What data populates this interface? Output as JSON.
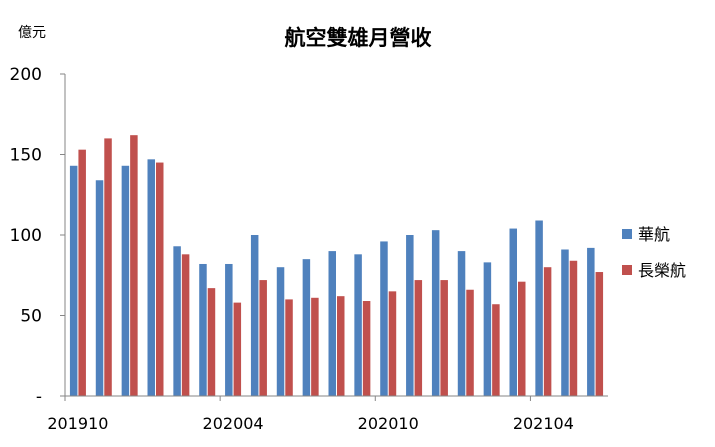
{
  "chart_data": {
    "type": "bar",
    "title": "航空雙雄月營收",
    "unit_label": "億元",
    "ylim": [
      0,
      200
    ],
    "y_ticks": [
      "-",
      "50",
      "100",
      "150",
      "200"
    ],
    "x_tick_labels": [
      "201910",
      "202004",
      "202010",
      "202104"
    ],
    "categories": [
      "201910",
      "201911",
      "201912",
      "202001",
      "202002",
      "202003",
      "202004",
      "202005",
      "202006",
      "202007",
      "202008",
      "202009",
      "202010",
      "202011",
      "202012",
      "202101",
      "202102",
      "202103",
      "202104",
      "202105",
      "202106"
    ],
    "series": [
      {
        "name": "華航",
        "color": "#4F81BD",
        "values": [
          143,
          134,
          143,
          147,
          93,
          82,
          82,
          100,
          80,
          85,
          90,
          88,
          96,
          100,
          103,
          90,
          83,
          104,
          109,
          91,
          92
        ]
      },
      {
        "name": "長榮航",
        "color": "#C0504D",
        "values": [
          153,
          160,
          162,
          145,
          88,
          67,
          58,
          72,
          60,
          61,
          62,
          59,
          65,
          72,
          72,
          66,
          57,
          71,
          80,
          84,
          77
        ]
      }
    ],
    "legend_position": "right",
    "grid": false
  }
}
